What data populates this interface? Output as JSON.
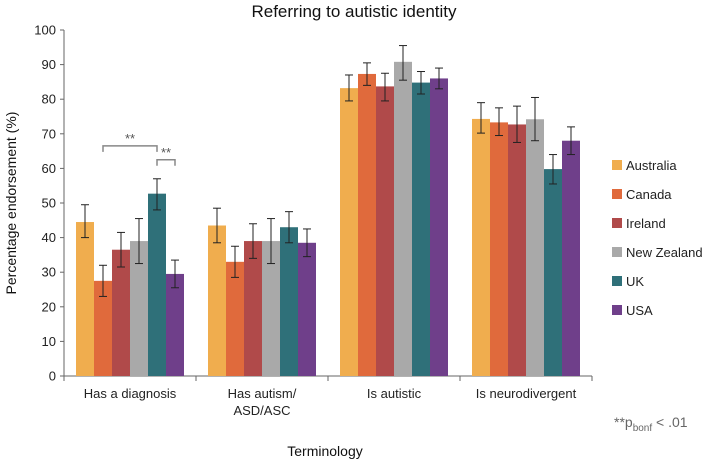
{
  "chart_data": {
    "type": "bar",
    "title": "Referring to autistic identity",
    "xlabel": "Terminology",
    "ylabel": "Percentage endorsement (%)",
    "ylim": [
      0,
      100
    ],
    "yticks": [
      0,
      10,
      20,
      30,
      40,
      50,
      60,
      70,
      80,
      90,
      100
    ],
    "categories": [
      [
        "Has a diagnosis"
      ],
      [
        "Has autism/",
        "ASD/ASC"
      ],
      [
        "Is autistic"
      ],
      [
        "Is neurodivergent"
      ]
    ],
    "grid": false,
    "legend_position": "right",
    "series": [
      {
        "name": "Australia",
        "color": "#f0ad4e",
        "values": [
          44.5,
          43.5,
          83.2,
          74.3
        ],
        "err_low": [
          40.0,
          38.5,
          79.5,
          70.2
        ],
        "err_high": [
          49.5,
          48.5,
          87.0,
          79.0
        ]
      },
      {
        "name": "Canada",
        "color": "#e06a3c",
        "values": [
          27.5,
          33.0,
          87.3,
          73.3
        ],
        "err_low": [
          23.0,
          28.5,
          84.0,
          69.5
        ],
        "err_high": [
          32.0,
          37.5,
          90.5,
          77.5
        ]
      },
      {
        "name": "Ireland",
        "color": "#b04a4a",
        "values": [
          36.5,
          39.0,
          83.7,
          72.7
        ],
        "err_low": [
          31.5,
          34.0,
          79.5,
          67.5
        ],
        "err_high": [
          41.5,
          44.0,
          87.5,
          78.0
        ]
      },
      {
        "name": "New Zealand",
        "color": "#a9a9a9",
        "values": [
          39.0,
          39.0,
          90.8,
          74.2
        ],
        "err_low": [
          32.5,
          32.5,
          85.5,
          68.0
        ],
        "err_high": [
          45.5,
          45.5,
          95.5,
          80.5
        ]
      },
      {
        "name": "UK",
        "color": "#2f7079",
        "values": [
          52.7,
          43.0,
          84.8,
          59.8
        ],
        "err_low": [
          48.0,
          38.5,
          81.5,
          55.5
        ],
        "err_high": [
          57.0,
          47.5,
          88.0,
          64.0
        ]
      },
      {
        "name": "USA",
        "color": "#6f3f8a",
        "values": [
          29.5,
          38.5,
          86.0,
          68.0
        ],
        "err_low": [
          25.5,
          34.5,
          83.0,
          64.0
        ],
        "err_high": [
          33.5,
          42.5,
          89.0,
          72.0
        ]
      }
    ],
    "annotations": [
      {
        "text": "**",
        "category": 0,
        "from_series": 1,
        "to_series": 4,
        "y": 66.5
      },
      {
        "text": "**",
        "category": 0,
        "from_series": 4,
        "to_series": 5,
        "y": 62.5
      }
    ],
    "note": {
      "prefix": "**p",
      "subscript": "bonf",
      "suffix": " < .01"
    }
  }
}
